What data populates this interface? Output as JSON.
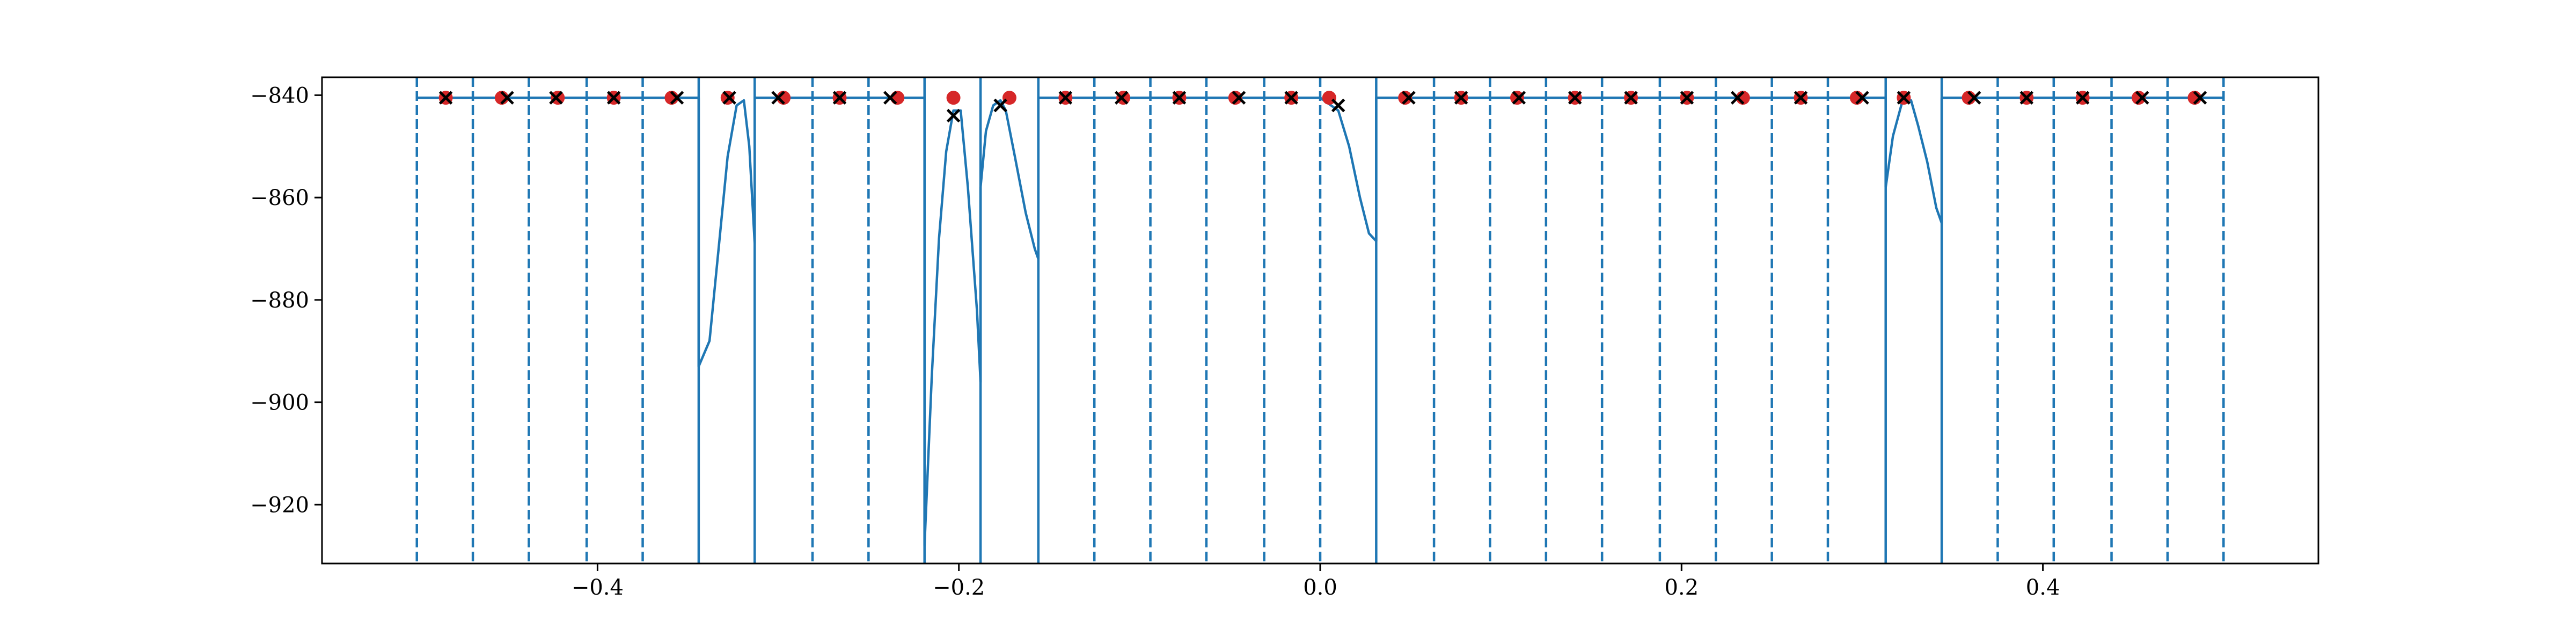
{
  "chart_data": {
    "type": "line",
    "title": "",
    "xlabel": "",
    "ylabel": "",
    "xlim": [
      -0.5525,
      0.5525
    ],
    "ylim": [
      -931.5,
      -836.5
    ],
    "grid": false,
    "legend": "none",
    "x_ticks": [
      {
        "value": -0.4,
        "label": "−0.4"
      },
      {
        "value": -0.2,
        "label": "−0.2"
      },
      {
        "value": 0.0,
        "label": "0.0"
      },
      {
        "value": 0.2,
        "label": "0.2"
      },
      {
        "value": 0.4,
        "label": "0.4"
      }
    ],
    "y_ticks": [
      {
        "value": -840,
        "label": "−840"
      },
      {
        "value": -860,
        "label": "−860"
      },
      {
        "value": -880,
        "label": "−880"
      },
      {
        "value": -900,
        "label": "−900"
      },
      {
        "value": -920,
        "label": "−920"
      }
    ],
    "colors": {
      "line": "#1f77b4",
      "dots": "#d62728",
      "crosses": "#000000",
      "boundaries": "#1f77b4"
    },
    "boundaries": [
      -0.5,
      -0.469,
      -0.438,
      -0.406,
      -0.375,
      -0.344,
      -0.313,
      -0.281,
      -0.25,
      -0.219,
      -0.188,
      -0.156,
      -0.125,
      -0.094,
      -0.063,
      -0.031,
      0.0,
      0.031,
      0.063,
      0.094,
      0.125,
      0.156,
      0.188,
      0.219,
      0.25,
      0.281,
      0.313,
      0.344,
      0.375,
      0.406,
      0.438,
      0.469,
      0.5
    ],
    "solid_boundaries": [
      -0.344,
      -0.313,
      -0.219,
      -0.188,
      -0.156,
      0.031,
      0.313,
      0.344
    ],
    "series": [
      {
        "kind": "line",
        "points": [
          [
            -0.5,
            -840.5
          ],
          [
            -0.344,
            -840.5
          ],
          [
            -0.344,
            -893
          ],
          [
            -0.338,
            -888
          ],
          [
            -0.333,
            -870
          ],
          [
            -0.328,
            -852
          ],
          [
            -0.323,
            -842
          ],
          [
            -0.319,
            -841
          ],
          [
            -0.316,
            -850
          ],
          [
            -0.313,
            -869
          ],
          [
            -0.313,
            -840.5
          ],
          [
            -0.219,
            -840.5
          ],
          [
            -0.219,
            -928
          ],
          [
            -0.215,
            -895
          ],
          [
            -0.211,
            -868
          ],
          [
            -0.207,
            -851
          ],
          [
            -0.203,
            -843
          ],
          [
            -0.199,
            -843
          ],
          [
            -0.195,
            -858
          ],
          [
            -0.19,
            -882
          ],
          [
            -0.188,
            -896
          ],
          [
            -0.188,
            -858
          ],
          [
            -0.185,
            -847
          ],
          [
            -0.181,
            -842
          ],
          [
            -0.177,
            -841
          ],
          [
            -0.174,
            -843
          ],
          [
            -0.169,
            -852
          ],
          [
            -0.163,
            -863
          ],
          [
            -0.158,
            -870
          ],
          [
            -0.156,
            -872
          ],
          [
            -0.156,
            -840.5
          ],
          [
            0.0,
            -840.5
          ],
          [
            0.01,
            -843
          ],
          [
            0.016,
            -850
          ],
          [
            0.022,
            -860
          ],
          [
            0.027,
            -867
          ],
          [
            0.031,
            -868.5
          ],
          [
            0.031,
            -840.5
          ],
          [
            0.313,
            -840.5
          ],
          [
            0.313,
            -858
          ],
          [
            0.317,
            -848
          ],
          [
            0.322,
            -841.5
          ],
          [
            0.327,
            -841
          ],
          [
            0.331,
            -846
          ],
          [
            0.336,
            -853
          ],
          [
            0.341,
            -862
          ],
          [
            0.344,
            -865
          ],
          [
            0.344,
            -840.5
          ],
          [
            0.5,
            -840.5
          ]
        ]
      },
      {
        "kind": "scatter-dots",
        "points": [
          [
            -0.484,
            -840.5
          ],
          [
            -0.453,
            -840.5
          ],
          [
            -0.422,
            -840.5
          ],
          [
            -0.391,
            -840.5
          ],
          [
            -0.359,
            -840.5
          ],
          [
            -0.328,
            -840.5
          ],
          [
            -0.297,
            -840.5
          ],
          [
            -0.266,
            -840.5
          ],
          [
            -0.234,
            -840.5
          ],
          [
            -0.203,
            -840.5
          ],
          [
            -0.172,
            -840.5
          ],
          [
            -0.141,
            -840.5
          ],
          [
            -0.109,
            -840.5
          ],
          [
            -0.078,
            -840.5
          ],
          [
            -0.047,
            -840.5
          ],
          [
            -0.016,
            -840.5
          ],
          [
            0.005,
            -840.5
          ],
          [
            0.047,
            -840.5
          ],
          [
            0.078,
            -840.5
          ],
          [
            0.109,
            -840.5
          ],
          [
            0.141,
            -840.5
          ],
          [
            0.172,
            -840.5
          ],
          [
            0.203,
            -840.5
          ],
          [
            0.234,
            -840.5
          ],
          [
            0.266,
            -840.5
          ],
          [
            0.297,
            -840.5
          ],
          [
            0.323,
            -840.5
          ],
          [
            0.359,
            -840.5
          ],
          [
            0.391,
            -840.5
          ],
          [
            0.422,
            -840.5
          ],
          [
            0.453,
            -840.5
          ],
          [
            0.484,
            -840.5
          ]
        ]
      },
      {
        "kind": "scatter-crosses",
        "points": [
          [
            -0.484,
            -840.5
          ],
          [
            -0.45,
            -840.5
          ],
          [
            -0.423,
            -840.5
          ],
          [
            -0.391,
            -840.5
          ],
          [
            -0.356,
            -840.5
          ],
          [
            -0.327,
            -840.5
          ],
          [
            -0.3,
            -840.5
          ],
          [
            -0.266,
            -840.5
          ],
          [
            -0.238,
            -840.5
          ],
          [
            -0.203,
            -844
          ],
          [
            -0.177,
            -842
          ],
          [
            -0.141,
            -840.5
          ],
          [
            -0.11,
            -840.5
          ],
          [
            -0.078,
            -840.5
          ],
          [
            -0.045,
            -840.5
          ],
          [
            -0.016,
            -840.5
          ],
          [
            0.01,
            -842
          ],
          [
            0.049,
            -840.5
          ],
          [
            0.078,
            -840.5
          ],
          [
            0.11,
            -840.5
          ],
          [
            0.141,
            -840.5
          ],
          [
            0.172,
            -840.5
          ],
          [
            0.203,
            -840.5
          ],
          [
            0.231,
            -840.5
          ],
          [
            0.266,
            -840.5
          ],
          [
            0.3,
            -840.5
          ],
          [
            0.323,
            -840.5
          ],
          [
            0.362,
            -840.5
          ],
          [
            0.391,
            -840.5
          ],
          [
            0.422,
            -840.5
          ],
          [
            0.455,
            -840.5
          ],
          [
            0.487,
            -840.5
          ]
        ]
      }
    ]
  }
}
